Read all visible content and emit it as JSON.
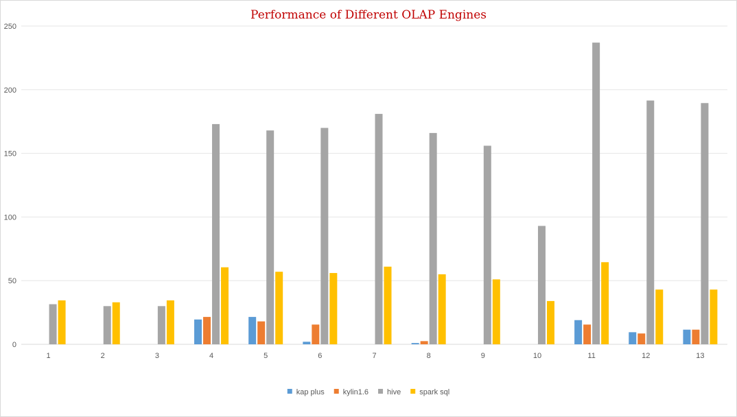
{
  "chart_data": {
    "type": "bar",
    "title": "Performance of Different OLAP Engines",
    "xlabel": "",
    "ylabel": "",
    "ylim": [
      0,
      250
    ],
    "yticks": [
      0,
      50,
      100,
      150,
      200,
      250
    ],
    "grid": true,
    "legend_position": "bottom",
    "categories": [
      "1",
      "2",
      "3",
      "4",
      "5",
      "6",
      "7",
      "8",
      "9",
      "10",
      "11",
      "12",
      "13"
    ],
    "series": [
      {
        "name": "kap plus",
        "color": "#5b9bd5",
        "values": [
          0,
          0,
          0,
          19.5,
          21.5,
          2,
          0,
          1,
          0,
          0,
          19,
          9.5,
          11.5
        ]
      },
      {
        "name": "kylin1.6",
        "color": "#ed7d31",
        "values": [
          0,
          0,
          0,
          21.5,
          18,
          15.5,
          0,
          2.5,
          0,
          0,
          15.5,
          8.5,
          11.5
        ]
      },
      {
        "name": "hive",
        "color": "#a5a5a5",
        "values": [
          31.5,
          30,
          30,
          173,
          168,
          170,
          181,
          166,
          156,
          93,
          237,
          191.5,
          189.5
        ]
      },
      {
        "name": "spark sql",
        "color": "#ffc000",
        "values": [
          34.5,
          33,
          34.5,
          60.5,
          57,
          56,
          61,
          55,
          51,
          34,
          64.5,
          43,
          43
        ]
      }
    ]
  }
}
